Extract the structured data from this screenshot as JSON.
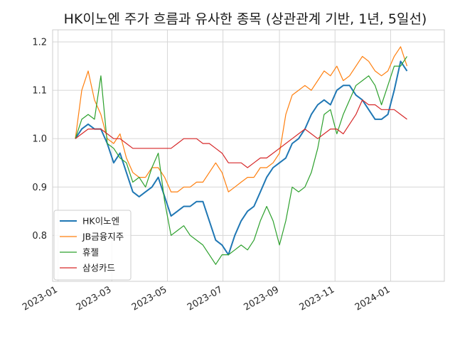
{
  "chart_data": {
    "type": "line",
    "title": "HK이노엔 주가 흐름과 유사한 종목 (상관관계 기반, 1년, 5일선)",
    "xlabel": "",
    "ylabel": "",
    "x_ticks": [
      "2023-01",
      "2023-03",
      "2023-05",
      "2023-07",
      "2023-09",
      "2023-11",
      "2024-01"
    ],
    "y_ticks": [
      "0.8",
      "0.9",
      "1.0",
      "1.1",
      "1.2"
    ],
    "xlim": [
      "2022-12-26",
      "2024-02-29"
    ],
    "ylim": [
      0.705,
      1.225
    ],
    "grid": true,
    "legend_position": "lower-left",
    "series": [
      {
        "name": "HK이노엔",
        "color": "#1f77b4",
        "points": [
          [
            "2023-01-20",
            1.0
          ],
          [
            "2023-01-27",
            1.02
          ],
          [
            "2023-02-03",
            1.03
          ],
          [
            "2023-02-10",
            1.02
          ],
          [
            "2023-02-17",
            1.02
          ],
          [
            "2023-02-24",
            0.99
          ],
          [
            "2023-03-03",
            0.95
          ],
          [
            "2023-03-10",
            0.97
          ],
          [
            "2023-03-17",
            0.93
          ],
          [
            "2023-03-24",
            0.89
          ],
          [
            "2023-03-31",
            0.88
          ],
          [
            "2023-04-07",
            0.89
          ],
          [
            "2023-04-14",
            0.9
          ],
          [
            "2023-04-21",
            0.92
          ],
          [
            "2023-04-28",
            0.88
          ],
          [
            "2023-05-05",
            0.84
          ],
          [
            "2023-05-12",
            0.85
          ],
          [
            "2023-05-19",
            0.86
          ],
          [
            "2023-05-26",
            0.86
          ],
          [
            "2023-06-02",
            0.87
          ],
          [
            "2023-06-09",
            0.87
          ],
          [
            "2023-06-16",
            0.83
          ],
          [
            "2023-06-23",
            0.79
          ],
          [
            "2023-06-30",
            0.78
          ],
          [
            "2023-07-07",
            0.76
          ],
          [
            "2023-07-14",
            0.8
          ],
          [
            "2023-07-21",
            0.83
          ],
          [
            "2023-07-28",
            0.85
          ],
          [
            "2023-08-04",
            0.86
          ],
          [
            "2023-08-11",
            0.89
          ],
          [
            "2023-08-18",
            0.92
          ],
          [
            "2023-08-25",
            0.94
          ],
          [
            "2023-09-01",
            0.95
          ],
          [
            "2023-09-08",
            0.96
          ],
          [
            "2023-09-15",
            0.99
          ],
          [
            "2023-09-22",
            1.0
          ],
          [
            "2023-09-29",
            1.02
          ],
          [
            "2023-10-06",
            1.05
          ],
          [
            "2023-10-13",
            1.07
          ],
          [
            "2023-10-20",
            1.08
          ],
          [
            "2023-10-27",
            1.07
          ],
          [
            "2023-11-03",
            1.1
          ],
          [
            "2023-11-10",
            1.11
          ],
          [
            "2023-11-17",
            1.11
          ],
          [
            "2023-11-24",
            1.09
          ],
          [
            "2023-12-01",
            1.08
          ],
          [
            "2023-12-08",
            1.06
          ],
          [
            "2023-12-15",
            1.04
          ],
          [
            "2023-12-22",
            1.04
          ],
          [
            "2023-12-29",
            1.05
          ],
          [
            "2024-01-05",
            1.1
          ],
          [
            "2024-01-12",
            1.16
          ],
          [
            "2024-01-19",
            1.14
          ]
        ]
      },
      {
        "name": "JB금융지주",
        "color": "#ff7f0e",
        "points": [
          [
            "2023-01-20",
            1.0
          ],
          [
            "2023-01-27",
            1.1
          ],
          [
            "2023-02-03",
            1.14
          ],
          [
            "2023-02-10",
            1.08
          ],
          [
            "2023-02-17",
            1.05
          ],
          [
            "2023-02-24",
            1.0
          ],
          [
            "2023-03-03",
            0.99
          ],
          [
            "2023-03-10",
            1.01
          ],
          [
            "2023-03-17",
            0.96
          ],
          [
            "2023-03-24",
            0.93
          ],
          [
            "2023-03-31",
            0.92
          ],
          [
            "2023-04-07",
            0.92
          ],
          [
            "2023-04-14",
            0.94
          ],
          [
            "2023-04-21",
            0.94
          ],
          [
            "2023-04-28",
            0.92
          ],
          [
            "2023-05-05",
            0.89
          ],
          [
            "2023-05-12",
            0.89
          ],
          [
            "2023-05-19",
            0.9
          ],
          [
            "2023-05-26",
            0.9
          ],
          [
            "2023-06-02",
            0.91
          ],
          [
            "2023-06-09",
            0.91
          ],
          [
            "2023-06-16",
            0.93
          ],
          [
            "2023-06-23",
            0.95
          ],
          [
            "2023-06-30",
            0.93
          ],
          [
            "2023-07-07",
            0.89
          ],
          [
            "2023-07-14",
            0.9
          ],
          [
            "2023-07-21",
            0.91
          ],
          [
            "2023-07-28",
            0.92
          ],
          [
            "2023-08-04",
            0.92
          ],
          [
            "2023-08-11",
            0.94
          ],
          [
            "2023-08-18",
            0.94
          ],
          [
            "2023-08-25",
            0.95
          ],
          [
            "2023-09-01",
            0.97
          ],
          [
            "2023-09-08",
            1.05
          ],
          [
            "2023-09-15",
            1.09
          ],
          [
            "2023-09-22",
            1.1
          ],
          [
            "2023-09-29",
            1.11
          ],
          [
            "2023-10-06",
            1.1
          ],
          [
            "2023-10-13",
            1.12
          ],
          [
            "2023-10-20",
            1.14
          ],
          [
            "2023-10-27",
            1.13
          ],
          [
            "2023-11-03",
            1.15
          ],
          [
            "2023-11-10",
            1.12
          ],
          [
            "2023-11-17",
            1.13
          ],
          [
            "2023-11-24",
            1.15
          ],
          [
            "2023-12-01",
            1.17
          ],
          [
            "2023-12-08",
            1.16
          ],
          [
            "2023-12-15",
            1.14
          ],
          [
            "2023-12-22",
            1.13
          ],
          [
            "2023-12-29",
            1.14
          ],
          [
            "2024-01-05",
            1.17
          ],
          [
            "2024-01-12",
            1.19
          ],
          [
            "2024-01-19",
            1.15
          ]
        ]
      },
      {
        "name": "휴젤",
        "color": "#2ca02c",
        "points": [
          [
            "2023-01-20",
            1.0
          ],
          [
            "2023-01-27",
            1.04
          ],
          [
            "2023-02-03",
            1.05
          ],
          [
            "2023-02-10",
            1.04
          ],
          [
            "2023-02-17",
            1.13
          ],
          [
            "2023-02-24",
            0.99
          ],
          [
            "2023-03-03",
            0.98
          ],
          [
            "2023-03-10",
            0.96
          ],
          [
            "2023-03-17",
            0.95
          ],
          [
            "2023-03-24",
            0.91
          ],
          [
            "2023-03-31",
            0.92
          ],
          [
            "2023-04-07",
            0.9
          ],
          [
            "2023-04-14",
            0.94
          ],
          [
            "2023-04-21",
            0.97
          ],
          [
            "2023-04-28",
            0.87
          ],
          [
            "2023-05-05",
            0.8
          ],
          [
            "2023-05-12",
            0.81
          ],
          [
            "2023-05-19",
            0.82
          ],
          [
            "2023-05-26",
            0.8
          ],
          [
            "2023-06-02",
            0.79
          ],
          [
            "2023-06-09",
            0.78
          ],
          [
            "2023-06-16",
            0.76
          ],
          [
            "2023-06-23",
            0.74
          ],
          [
            "2023-06-30",
            0.76
          ],
          [
            "2023-07-07",
            0.76
          ],
          [
            "2023-07-14",
            0.77
          ],
          [
            "2023-07-21",
            0.78
          ],
          [
            "2023-07-28",
            0.77
          ],
          [
            "2023-08-04",
            0.79
          ],
          [
            "2023-08-11",
            0.83
          ],
          [
            "2023-08-18",
            0.86
          ],
          [
            "2023-08-25",
            0.83
          ],
          [
            "2023-09-01",
            0.78
          ],
          [
            "2023-09-08",
            0.83
          ],
          [
            "2023-09-15",
            0.9
          ],
          [
            "2023-09-22",
            0.89
          ],
          [
            "2023-09-29",
            0.9
          ],
          [
            "2023-10-06",
            0.93
          ],
          [
            "2023-10-13",
            0.98
          ],
          [
            "2023-10-20",
            1.05
          ],
          [
            "2023-10-27",
            1.06
          ],
          [
            "2023-11-03",
            1.01
          ],
          [
            "2023-11-10",
            1.05
          ],
          [
            "2023-11-17",
            1.08
          ],
          [
            "2023-11-24",
            1.11
          ],
          [
            "2023-12-01",
            1.12
          ],
          [
            "2023-12-08",
            1.13
          ],
          [
            "2023-12-15",
            1.11
          ],
          [
            "2023-12-22",
            1.07
          ],
          [
            "2023-12-29",
            1.11
          ],
          [
            "2024-01-05",
            1.15
          ],
          [
            "2024-01-12",
            1.15
          ],
          [
            "2024-01-19",
            1.17
          ]
        ]
      },
      {
        "name": "삼성카드",
        "color": "#d62728",
        "points": [
          [
            "2023-01-20",
            1.0
          ],
          [
            "2023-01-27",
            1.01
          ],
          [
            "2023-02-03",
            1.02
          ],
          [
            "2023-02-10",
            1.02
          ],
          [
            "2023-02-17",
            1.02
          ],
          [
            "2023-02-24",
            1.01
          ],
          [
            "2023-03-03",
            1.0
          ],
          [
            "2023-03-10",
            1.0
          ],
          [
            "2023-03-17",
            0.99
          ],
          [
            "2023-03-24",
            0.98
          ],
          [
            "2023-03-31",
            0.98
          ],
          [
            "2023-04-07",
            0.98
          ],
          [
            "2023-04-14",
            0.98
          ],
          [
            "2023-04-21",
            0.98
          ],
          [
            "2023-04-28",
            0.98
          ],
          [
            "2023-05-05",
            0.98
          ],
          [
            "2023-05-12",
            0.99
          ],
          [
            "2023-05-19",
            1.0
          ],
          [
            "2023-05-26",
            1.0
          ],
          [
            "2023-06-02",
            1.0
          ],
          [
            "2023-06-09",
            0.99
          ],
          [
            "2023-06-16",
            0.99
          ],
          [
            "2023-06-23",
            0.98
          ],
          [
            "2023-06-30",
            0.97
          ],
          [
            "2023-07-07",
            0.95
          ],
          [
            "2023-07-14",
            0.95
          ],
          [
            "2023-07-21",
            0.95
          ],
          [
            "2023-07-28",
            0.94
          ],
          [
            "2023-08-04",
            0.95
          ],
          [
            "2023-08-11",
            0.96
          ],
          [
            "2023-08-18",
            0.96
          ],
          [
            "2023-08-25",
            0.97
          ],
          [
            "2023-09-01",
            0.98
          ],
          [
            "2023-09-08",
            0.99
          ],
          [
            "2023-09-15",
            1.0
          ],
          [
            "2023-09-22",
            1.01
          ],
          [
            "2023-09-29",
            1.02
          ],
          [
            "2023-10-06",
            1.01
          ],
          [
            "2023-10-13",
            1.0
          ],
          [
            "2023-10-20",
            1.01
          ],
          [
            "2023-10-27",
            1.02
          ],
          [
            "2023-11-03",
            1.02
          ],
          [
            "2023-11-10",
            1.01
          ],
          [
            "2023-11-17",
            1.03
          ],
          [
            "2023-11-24",
            1.05
          ],
          [
            "2023-12-01",
            1.08
          ],
          [
            "2023-12-08",
            1.07
          ],
          [
            "2023-12-15",
            1.07
          ],
          [
            "2023-12-22",
            1.06
          ],
          [
            "2023-12-29",
            1.06
          ],
          [
            "2024-01-05",
            1.06
          ],
          [
            "2024-01-12",
            1.05
          ],
          [
            "2024-01-19",
            1.04
          ]
        ]
      }
    ]
  }
}
